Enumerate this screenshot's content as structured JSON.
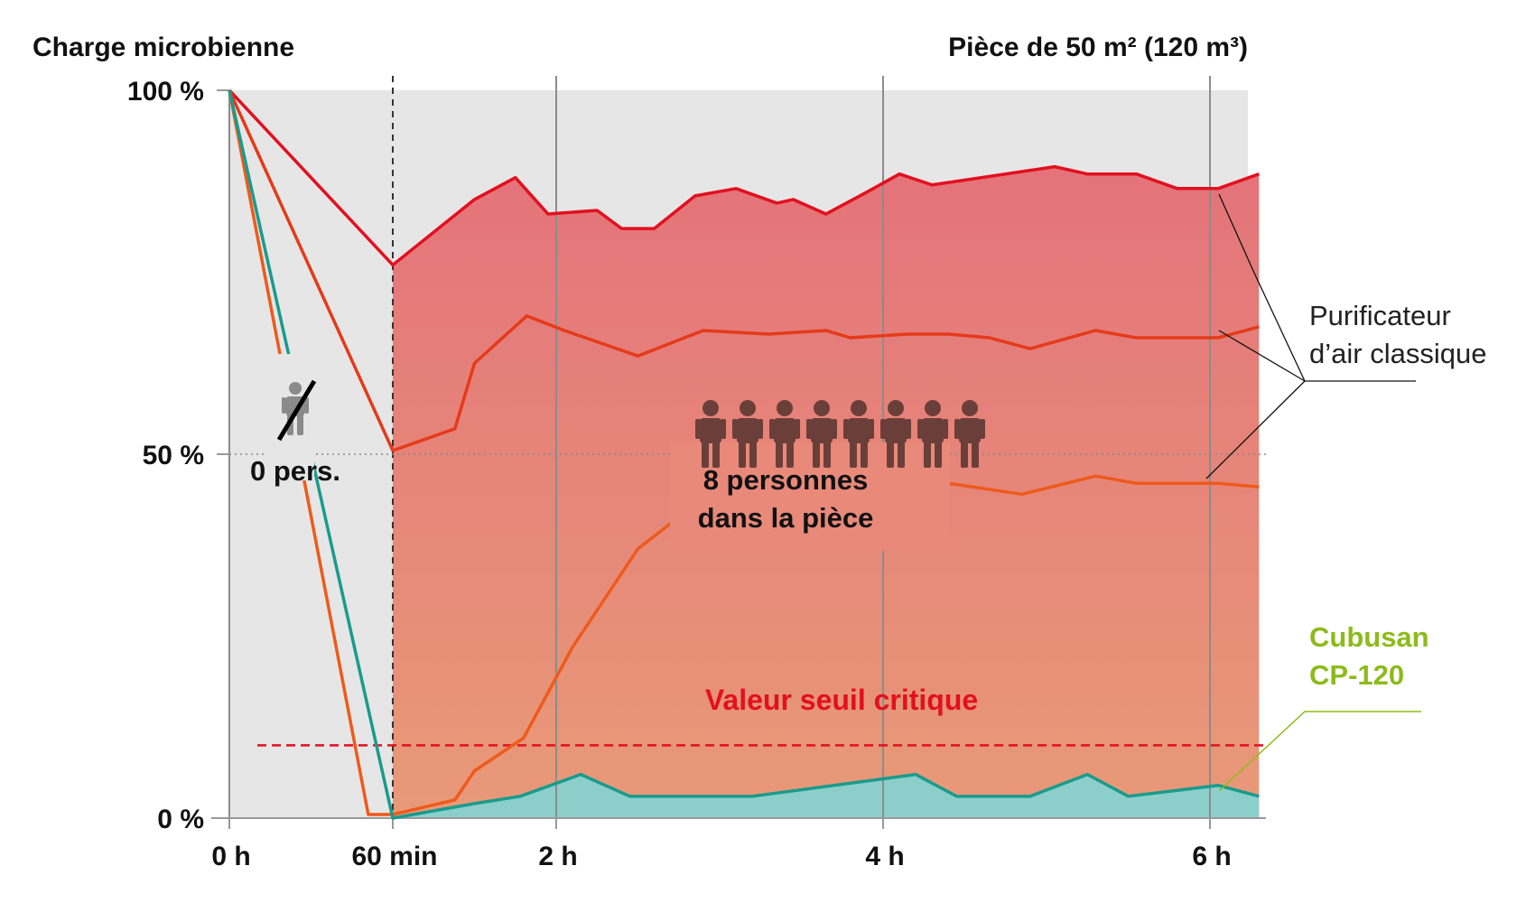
{
  "chart_data": {
    "type": "line",
    "title": "Charge microbienne",
    "subtitle": "Pièce de 50 m² (120 m³)",
    "y_ticks": [
      "100 %",
      "50 %",
      "0 %"
    ],
    "x_ticks": [
      "0 h",
      "60 min",
      "2 h",
      "4 h",
      "6 h"
    ],
    "x_tick_values": [
      0,
      1,
      2,
      4,
      6
    ],
    "xlim": [
      0,
      6.3
    ],
    "ylim": [
      0,
      100
    ],
    "phase_empty_label": "0 pers.",
    "people_count": 8,
    "occupancy_label": [
      "8 personnes",
      "dans la pièce"
    ],
    "threshold": {
      "label": "Valeur seuil critique",
      "value": 10
    },
    "legend_classic": [
      "Purificateur",
      "d’air classique"
    ],
    "legend_cubusan": [
      "Cubusan",
      "CP-120"
    ],
    "colors": {
      "classic_dark": "#e2101f",
      "classic_mid": "#e53a1a",
      "classic_light": "#ee5a1c",
      "cubusan": "#1a9b8c",
      "cubusan_fill": "#8ccfca",
      "cubusan_label": "#8dbb1a",
      "threshold": "#e2101f",
      "background_empty": "#e6e6e6",
      "fill_top": "#e67479",
      "fill_bottom": "#e8957a",
      "people": "#6b3f39"
    },
    "series": [
      {
        "group": "classic",
        "points": [
          [
            0,
            100
          ],
          [
            1,
            76
          ],
          [
            1.5,
            85
          ],
          [
            1.75,
            88
          ],
          [
            1.95,
            83
          ],
          [
            2.25,
            83.5
          ],
          [
            2.4,
            81
          ],
          [
            2.6,
            81
          ],
          [
            2.85,
            85.5
          ],
          [
            3.1,
            86.5
          ],
          [
            3.35,
            84.5
          ],
          [
            3.45,
            85
          ],
          [
            3.65,
            83
          ],
          [
            3.9,
            86
          ],
          [
            4.1,
            88.5
          ],
          [
            4.3,
            87
          ],
          [
            4.6,
            88
          ],
          [
            4.9,
            89
          ],
          [
            5.05,
            89.5
          ],
          [
            5.25,
            88.5
          ],
          [
            5.55,
            88.5
          ],
          [
            5.8,
            86.5
          ],
          [
            6.05,
            86.5
          ],
          [
            6.3,
            88.5
          ]
        ]
      },
      {
        "group": "classic",
        "points": [
          [
            0,
            100
          ],
          [
            1,
            50.5
          ],
          [
            1.38,
            53.5
          ],
          [
            1.5,
            62.5
          ],
          [
            1.82,
            69
          ],
          [
            2.05,
            67
          ],
          [
            2.5,
            63.5
          ],
          [
            2.9,
            67
          ],
          [
            3.3,
            66.5
          ],
          [
            3.65,
            67
          ],
          [
            3.8,
            66
          ],
          [
            4.15,
            66.5
          ],
          [
            4.4,
            66.5
          ],
          [
            4.65,
            66
          ],
          [
            4.9,
            64.5
          ],
          [
            5.3,
            67
          ],
          [
            5.55,
            66
          ],
          [
            5.9,
            66
          ],
          [
            6.05,
            66
          ],
          [
            6.3,
            67.5
          ]
        ]
      },
      {
        "group": "classic",
        "points": [
          [
            0,
            100
          ],
          [
            0.85,
            0.5
          ],
          [
            1,
            0.5
          ],
          [
            1.38,
            2.5
          ],
          [
            1.5,
            6.5
          ],
          [
            1.8,
            11
          ],
          [
            2.1,
            23.5
          ],
          [
            2.5,
            37
          ],
          [
            2.7,
            40.5
          ],
          [
            3.05,
            44.5
          ],
          [
            4.4,
            46
          ],
          [
            4.85,
            44.5
          ],
          [
            5.3,
            47
          ],
          [
            5.55,
            46
          ],
          [
            6.05,
            46
          ],
          [
            6.3,
            45.5
          ]
        ]
      },
      {
        "group": "cubusan",
        "points": [
          [
            0,
            100
          ],
          [
            1,
            0
          ],
          [
            1.5,
            2
          ],
          [
            1.78,
            3
          ],
          [
            2.15,
            6
          ],
          [
            2.45,
            3
          ],
          [
            3.2,
            3
          ],
          [
            4.2,
            6
          ],
          [
            4.45,
            3
          ],
          [
            4.9,
            3
          ],
          [
            5.25,
            6
          ],
          [
            5.5,
            3
          ],
          [
            6.05,
            4.5
          ],
          [
            6.3,
            3
          ]
        ]
      }
    ]
  }
}
